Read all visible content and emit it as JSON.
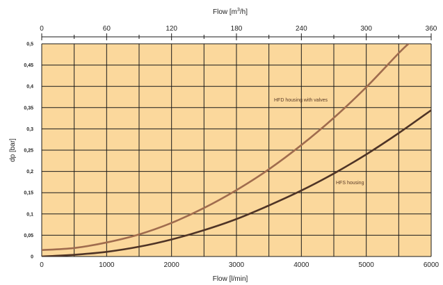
{
  "chart_data": {
    "type": "line",
    "title": "",
    "xlabel": "Flow [l/min]",
    "x2label_pre": "Flow [m",
    "x2label_sup": "3",
    "x2label_post": "/h]",
    "ylabel": "dp [bar]",
    "xlim": [
      0,
      6000
    ],
    "x2lim": [
      0,
      360
    ],
    "ylim": [
      0,
      0.5
    ],
    "x_ticks": [
      "0",
      "1000",
      "2000",
      "3000",
      "4000",
      "5000",
      "6000"
    ],
    "x2_ticks": [
      "0",
      "60",
      "120",
      "180",
      "240",
      "300",
      "360"
    ],
    "y_ticks": [
      "0",
      "0,05",
      "0,1",
      "0,15",
      "0,2",
      "0,25",
      "0,3",
      "0,35",
      "0,4",
      "0,45",
      "0,5"
    ],
    "grid": true,
    "background_color": "#fbd89c",
    "series": [
      {
        "name": "HFD housing with valves",
        "color": "#a06c4e",
        "x": [
          0,
          500,
          1000,
          1500,
          2000,
          2500,
          3000,
          3500,
          4000,
          4500,
          5000,
          5500,
          5650
        ],
        "y": [
          0.015,
          0.02,
          0.033,
          0.052,
          0.079,
          0.114,
          0.156,
          0.205,
          0.262,
          0.326,
          0.398,
          0.478,
          0.5
        ]
      },
      {
        "name": "HFS housing",
        "color": "#4f3426",
        "x": [
          0,
          500,
          1000,
          1500,
          2000,
          2500,
          3000,
          3500,
          4000,
          4500,
          5000,
          5500,
          6000
        ],
        "y": [
          0,
          0.004,
          0.011,
          0.023,
          0.04,
          0.062,
          0.088,
          0.12,
          0.155,
          0.195,
          0.24,
          0.29,
          0.344
        ]
      }
    ]
  }
}
